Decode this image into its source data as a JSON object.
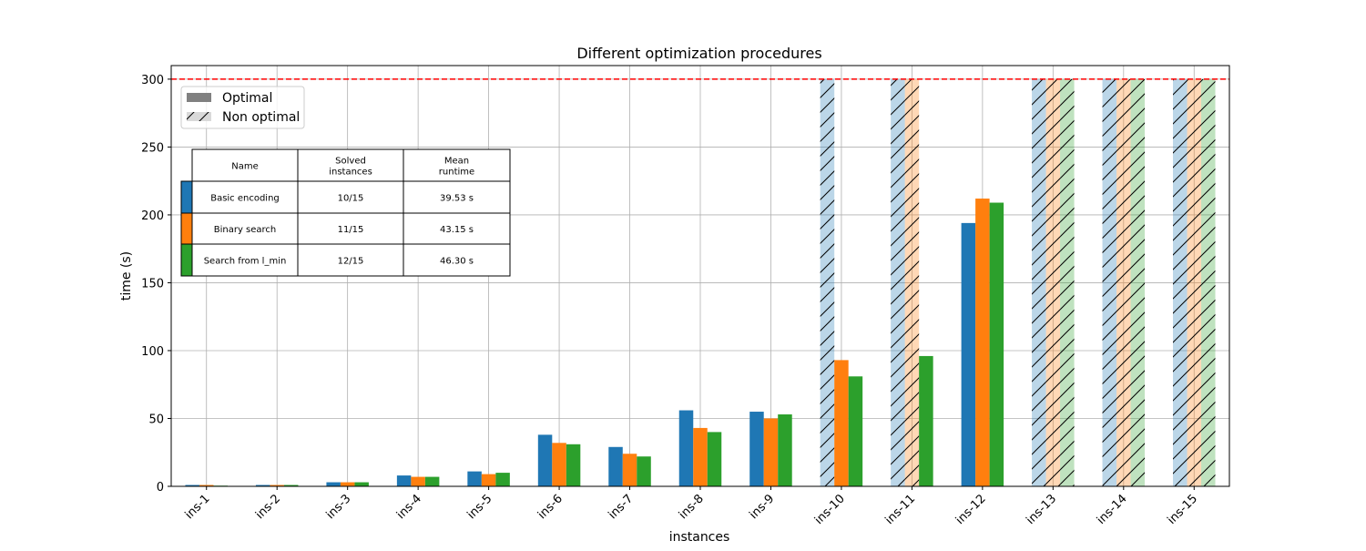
{
  "chart_data": {
    "type": "bar",
    "title": "Different optimization procedures",
    "xlabel": "instances",
    "ylabel": "time (s)",
    "ylim": [
      0,
      310
    ],
    "yticks": [
      0,
      50,
      100,
      150,
      200,
      250,
      300
    ],
    "grid": true,
    "timeout_line": {
      "value": 300,
      "color": "#ff0000",
      "style": "dashed"
    },
    "categories": [
      "ins-1",
      "ins-2",
      "ins-3",
      "ins-4",
      "ins-5",
      "ins-6",
      "ins-7",
      "ins-8",
      "ins-9",
      "ins-10",
      "ins-11",
      "ins-12",
      "ins-13",
      "ins-14",
      "ins-15"
    ],
    "series": [
      {
        "name": "Basic encoding",
        "color": "#1f77b4",
        "values": [
          1,
          1,
          3,
          8,
          11,
          38,
          29,
          56,
          55,
          300,
          300,
          194,
          300,
          300,
          300
        ],
        "optimal": [
          true,
          true,
          true,
          true,
          true,
          true,
          true,
          true,
          true,
          false,
          false,
          true,
          false,
          false,
          false
        ]
      },
      {
        "name": "Binary search",
        "color": "#ff7f0e",
        "values": [
          1,
          1,
          3,
          7,
          9,
          32,
          24,
          43,
          50,
          93,
          300,
          212,
          300,
          300,
          300
        ],
        "optimal": [
          true,
          true,
          true,
          true,
          true,
          true,
          true,
          true,
          true,
          true,
          false,
          true,
          false,
          false,
          false
        ]
      },
      {
        "name": "Search from l_min",
        "color": "#2ca02c",
        "values": [
          0.5,
          1,
          3,
          7,
          10,
          31,
          22,
          40,
          53,
          81,
          96,
          209,
          300,
          300,
          300
        ],
        "optimal": [
          true,
          true,
          true,
          true,
          true,
          true,
          true,
          true,
          true,
          true,
          true,
          true,
          false,
          false,
          false
        ]
      }
    ],
    "legend": {
      "placement": "upper-left",
      "entries": [
        {
          "label": "Optimal",
          "style": "solid",
          "color": "#808080"
        },
        {
          "label": "Non optimal",
          "style": "hatched",
          "color": "#d9d9d9"
        }
      ]
    },
    "table": {
      "headers": [
        "Name",
        "Solved\ninstances",
        "Mean\nruntime"
      ],
      "rows": [
        {
          "color": "#1f77b4",
          "cells": [
            "Basic encoding",
            "10/15",
            "39.53 s"
          ]
        },
        {
          "color": "#ff7f0e",
          "cells": [
            "Binary search",
            "11/15",
            "43.15 s"
          ]
        },
        {
          "color": "#2ca02c",
          "cells": [
            "Search from l_min",
            "12/15",
            "46.30 s"
          ]
        }
      ]
    }
  }
}
